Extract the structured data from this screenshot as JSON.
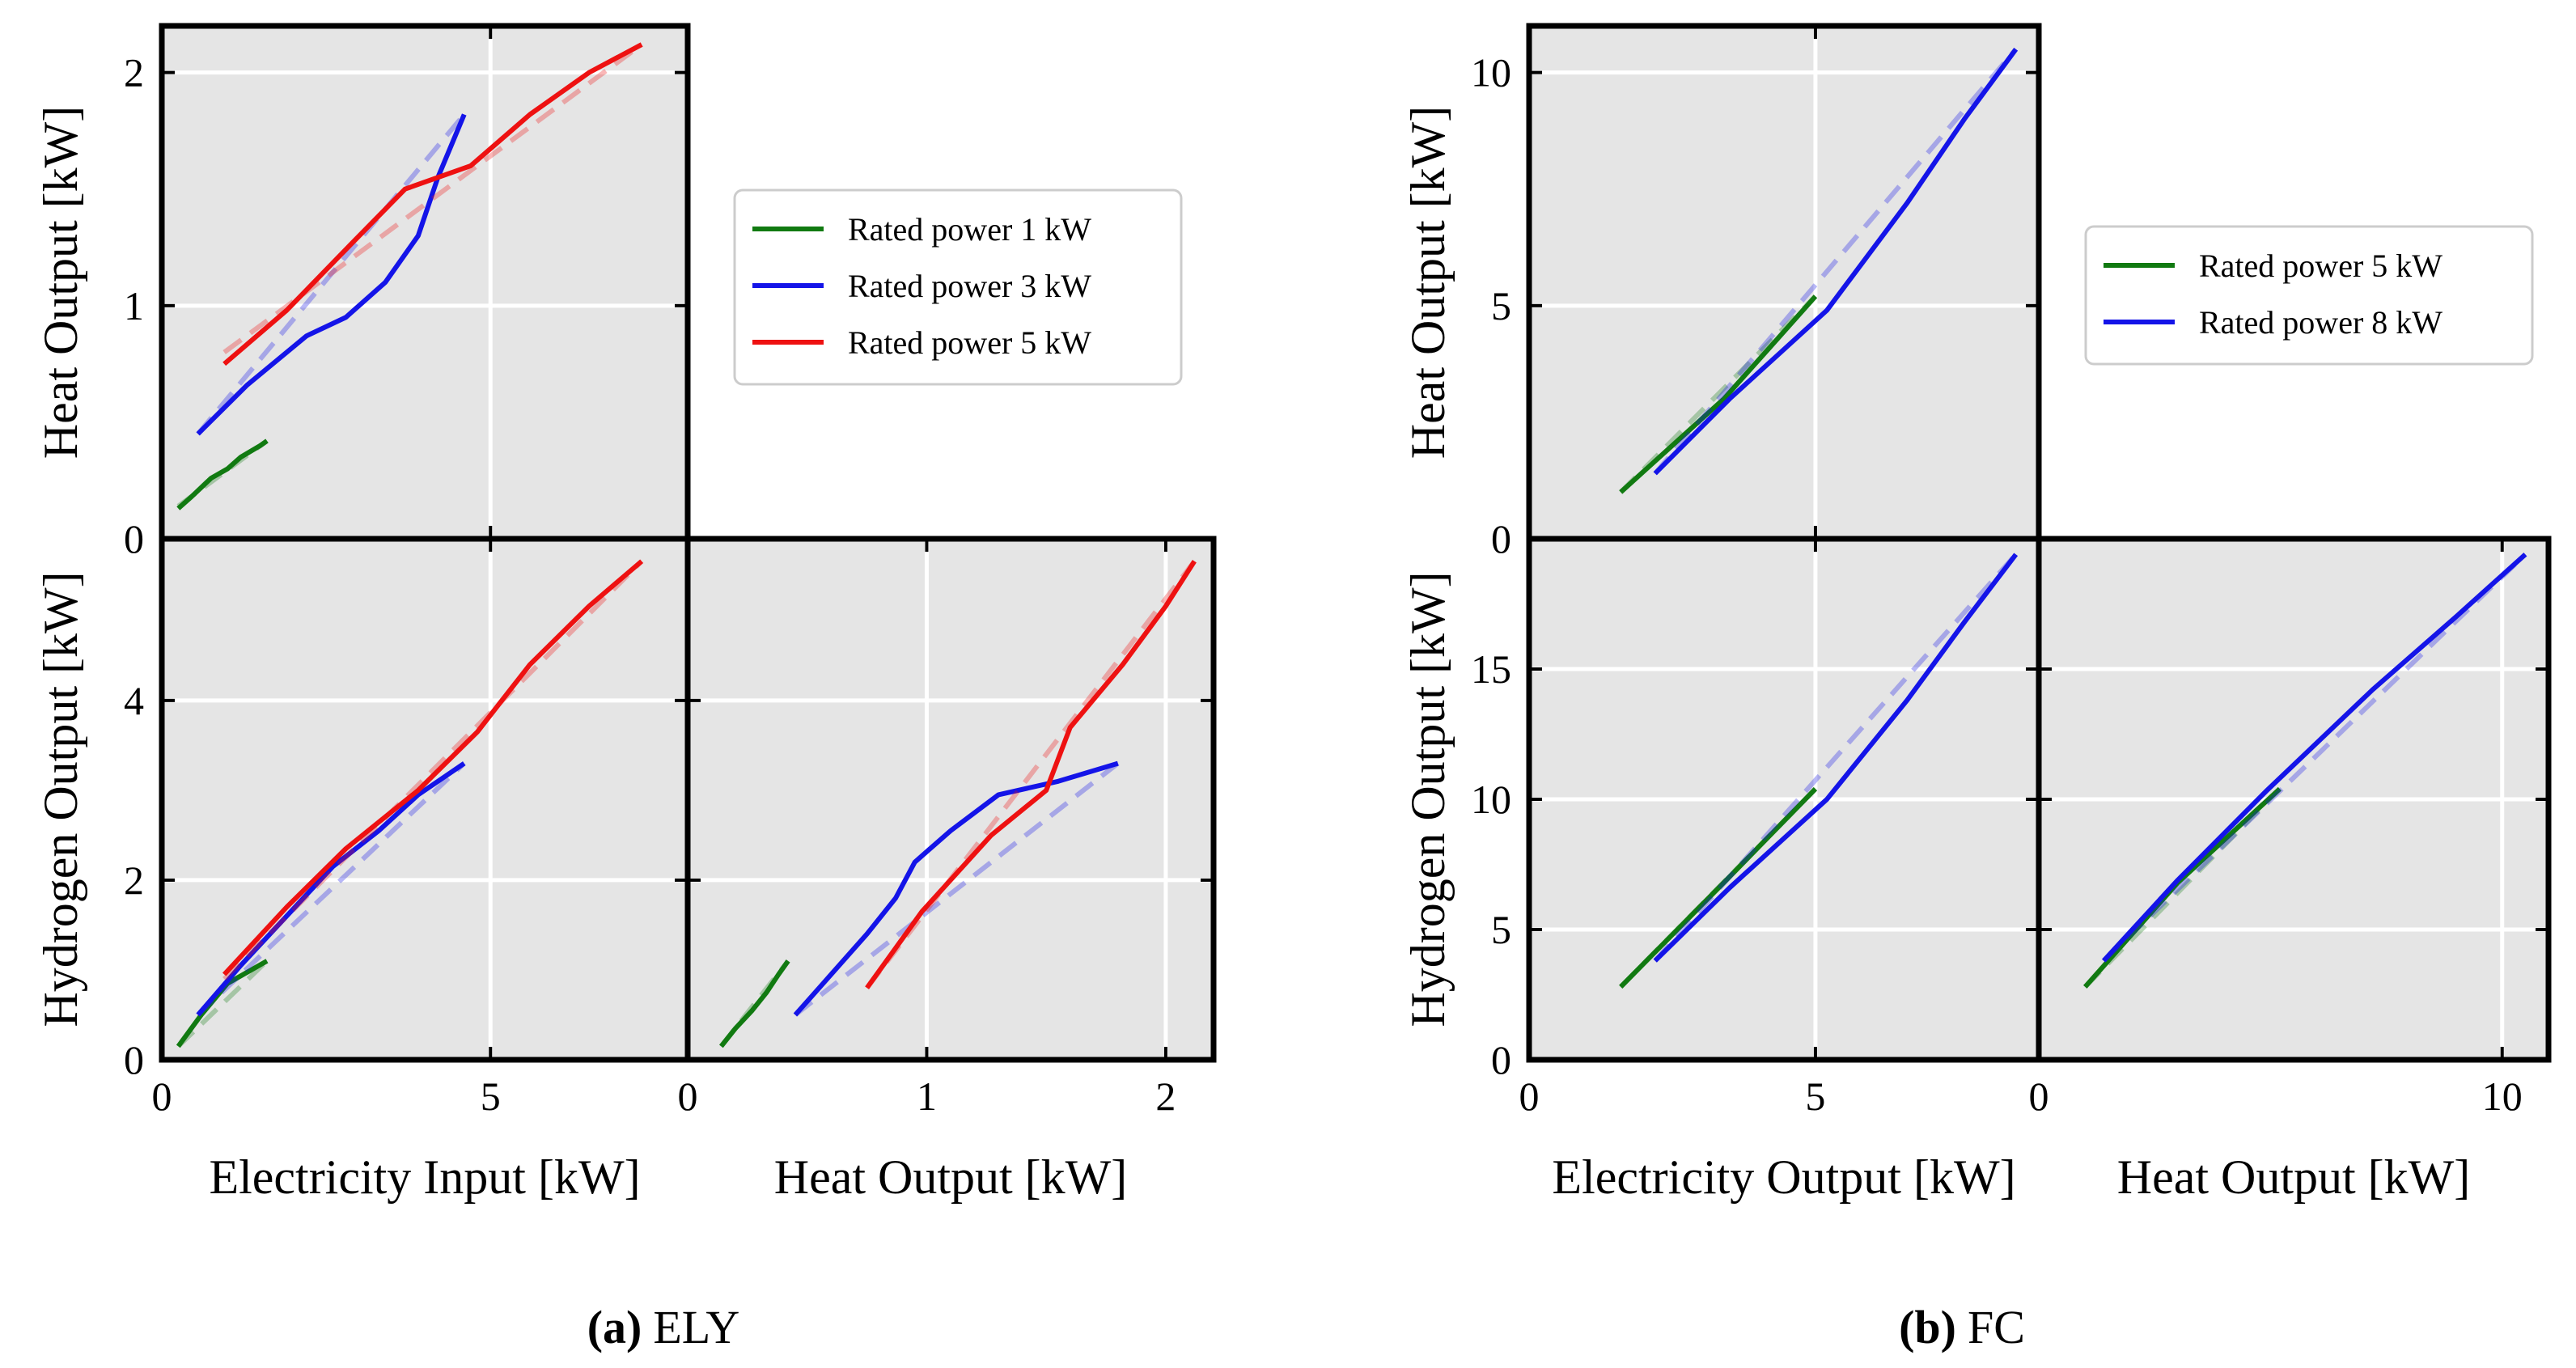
{
  "colors": {
    "panel_bg": "#e5e5e5",
    "grid": "#ffffff",
    "green": "#117a11",
    "blue": "#1414e8",
    "red": "#ee1111"
  },
  "captions": [
    {
      "letter": "(a)",
      "text": "ELY"
    },
    {
      "letter": "(b)",
      "text": "FC"
    }
  ],
  "chart_data": [
    {
      "type": "line",
      "group": "ELY",
      "xlabel": "Electricity Input [kW]",
      "ylabel": "Heat Output [kW]",
      "xlim": [
        0,
        8.0
      ],
      "ylim": [
        0,
        2.2
      ],
      "xticks": [
        0,
        5
      ],
      "yticks": [
        0,
        1,
        2
      ],
      "legend": "outside-right",
      "series": [
        {
          "name": "Rated power 1 kW",
          "color": "green",
          "x": [
            0.25,
            0.45,
            0.75,
            1.0,
            1.2,
            1.5,
            1.6
          ],
          "y": [
            0.13,
            0.18,
            0.26,
            0.3,
            0.35,
            0.4,
            0.42
          ],
          "fit_x": [
            0.25,
            1.6
          ],
          "fit_y": [
            0.14,
            0.42
          ]
        },
        {
          "name": "Rated power 3 kW",
          "color": "blue",
          "x": [
            0.55,
            1.3,
            2.2,
            2.8,
            3.4,
            3.9,
            4.2,
            4.6
          ],
          "y": [
            0.45,
            0.66,
            0.87,
            0.95,
            1.1,
            1.3,
            1.55,
            1.82
          ],
          "fit_x": [
            0.55,
            4.6
          ],
          "fit_y": [
            0.45,
            1.82
          ]
        },
        {
          "name": "Rated power 5 kW",
          "color": "red",
          "x": [
            0.95,
            1.9,
            2.9,
            3.7,
            4.7,
            5.6,
            6.5,
            7.3
          ],
          "y": [
            0.75,
            0.98,
            1.27,
            1.5,
            1.6,
            1.82,
            2.0,
            2.12
          ],
          "fit_x": [
            0.95,
            7.3
          ],
          "fit_y": [
            0.8,
            2.12
          ]
        }
      ]
    },
    {
      "type": "line",
      "group": "ELY",
      "xlabel": "Electricity Input [kW]",
      "ylabel": "Hydrogen Output [kW]",
      "xlim": [
        0,
        8.0
      ],
      "ylim": [
        0,
        5.8
      ],
      "xticks": [
        0,
        5
      ],
      "yticks": [
        0,
        2,
        4
      ],
      "series": [
        {
          "name": "Rated power 1 kW",
          "color": "green",
          "x": [
            0.25,
            0.6,
            1.0,
            1.6
          ],
          "y": [
            0.15,
            0.5,
            0.85,
            1.1
          ],
          "fit_x": [
            0.25,
            1.6
          ],
          "fit_y": [
            0.15,
            1.1
          ]
        },
        {
          "name": "Rated power 3 kW",
          "color": "blue",
          "x": [
            0.55,
            1.2,
            1.9,
            2.6,
            3.3,
            3.9,
            4.6
          ],
          "y": [
            0.5,
            1.05,
            1.6,
            2.15,
            2.55,
            2.95,
            3.3
          ],
          "fit_x": [
            0.55,
            4.6
          ],
          "fit_y": [
            0.5,
            3.3
          ]
        },
        {
          "name": "Rated power 5 kW",
          "color": "red",
          "x": [
            0.95,
            1.9,
            2.8,
            3.9,
            4.8,
            5.6,
            6.5,
            7.3
          ],
          "y": [
            0.95,
            1.7,
            2.35,
            3.0,
            3.65,
            4.4,
            5.05,
            5.55
          ],
          "fit_x": [
            0.95,
            7.3
          ],
          "fit_y": [
            0.9,
            5.55
          ]
        }
      ]
    },
    {
      "type": "line",
      "group": "ELY",
      "xlabel": "Heat Output [kW]",
      "ylabel": "",
      "xlim": [
        0,
        2.2
      ],
      "ylim": [
        0,
        5.8
      ],
      "xticks": [
        0,
        1,
        2
      ],
      "yticks": [
        0,
        2,
        4
      ],
      "series": [
        {
          "name": "Rated power 1 kW",
          "color": "green",
          "x": [
            0.14,
            0.2,
            0.27,
            0.33,
            0.38,
            0.42
          ],
          "y": [
            0.15,
            0.35,
            0.55,
            0.75,
            0.95,
            1.1
          ],
          "fit_x": [
            0.14,
            0.42
          ],
          "fit_y": [
            0.15,
            1.1
          ]
        },
        {
          "name": "Rated power 3 kW",
          "color": "blue",
          "x": [
            0.45,
            0.6,
            0.75,
            0.87,
            0.95,
            1.1,
            1.3,
            1.55,
            1.8
          ],
          "y": [
            0.5,
            0.95,
            1.4,
            1.8,
            2.2,
            2.55,
            2.95,
            3.1,
            3.3
          ],
          "fit_x": [
            0.45,
            1.8
          ],
          "fit_y": [
            0.5,
            3.3
          ]
        },
        {
          "name": "Rated power 5 kW",
          "color": "red",
          "x": [
            0.75,
            0.98,
            1.27,
            1.5,
            1.6,
            1.82,
            2.0,
            2.12
          ],
          "y": [
            0.8,
            1.65,
            2.5,
            3.0,
            3.7,
            4.4,
            5.05,
            5.55
          ],
          "fit_x": [
            0.75,
            2.12
          ],
          "fit_y": [
            0.8,
            5.55
          ]
        }
      ]
    },
    {
      "type": "line",
      "group": "FC",
      "xlabel": "Electricity Output [kW]",
      "ylabel": "Heat Output [kW]",
      "xlim": [
        0,
        8.9
      ],
      "ylim": [
        0,
        11.0
      ],
      "xticks": [
        0,
        5
      ],
      "yticks": [
        0,
        5,
        10
      ],
      "legend": "outside-right",
      "series": [
        {
          "name": "Rated power 5 kW",
          "color": "green",
          "x": [
            1.6,
            2.5,
            3.4,
            4.2,
            5.0
          ],
          "y": [
            1.0,
            2.0,
            3.0,
            4.1,
            5.2
          ],
          "fit_x": [
            1.6,
            5.0
          ],
          "fit_y": [
            1.0,
            5.2
          ]
        },
        {
          "name": "Rated power 8 kW",
          "color": "blue",
          "x": [
            2.2,
            3.5,
            5.2,
            6.6,
            7.6,
            8.5
          ],
          "y": [
            1.4,
            3.0,
            4.9,
            7.2,
            9.0,
            10.5
          ],
          "fit_x": [
            2.2,
            8.5
          ],
          "fit_y": [
            1.4,
            10.5
          ]
        }
      ]
    },
    {
      "type": "line",
      "group": "FC",
      "xlabel": "Electricity Output [kW]",
      "ylabel": "Hydrogen Output [kW]",
      "xlim": [
        0,
        8.9
      ],
      "ylim": [
        0,
        20.0
      ],
      "xticks": [
        0,
        5
      ],
      "yticks": [
        0,
        5,
        10,
        15
      ],
      "series": [
        {
          "name": "Rated power 5 kW",
          "color": "green",
          "x": [
            1.6,
            2.5,
            3.4,
            4.2,
            5.0
          ],
          "y": [
            2.8,
            4.8,
            6.8,
            8.6,
            10.4
          ],
          "fit_x": [
            1.6,
            5.0
          ],
          "fit_y": [
            2.8,
            10.4
          ]
        },
        {
          "name": "Rated power 8 kW",
          "color": "blue",
          "x": [
            2.2,
            3.5,
            5.2,
            6.6,
            7.6,
            8.5
          ],
          "y": [
            3.8,
            6.6,
            10.0,
            13.8,
            16.8,
            19.4
          ],
          "fit_x": [
            2.2,
            8.5
          ],
          "fit_y": [
            3.8,
            19.4
          ]
        }
      ]
    },
    {
      "type": "line",
      "group": "FC",
      "xlabel": "Heat Output [kW]",
      "ylabel": "",
      "xlim": [
        0,
        11.0
      ],
      "ylim": [
        0,
        20.0
      ],
      "xticks": [
        0,
        10
      ],
      "yticks": [
        0,
        5,
        10,
        15
      ],
      "series": [
        {
          "name": "Rated power 5 kW",
          "color": "green",
          "x": [
            1.0,
            2.0,
            3.0,
            4.1,
            5.2
          ],
          "y": [
            2.8,
            4.8,
            6.8,
            8.6,
            10.4
          ],
          "fit_x": [
            1.0,
            5.2
          ],
          "fit_y": [
            2.8,
            10.4
          ]
        },
        {
          "name": "Rated power 8 kW",
          "color": "blue",
          "x": [
            1.4,
            3.0,
            4.9,
            7.2,
            9.0,
            10.5
          ],
          "y": [
            3.8,
            6.9,
            10.3,
            14.2,
            17.0,
            19.4
          ],
          "fit_x": [
            1.4,
            10.5
          ],
          "fit_y": [
            3.8,
            19.4
          ]
        }
      ]
    }
  ]
}
